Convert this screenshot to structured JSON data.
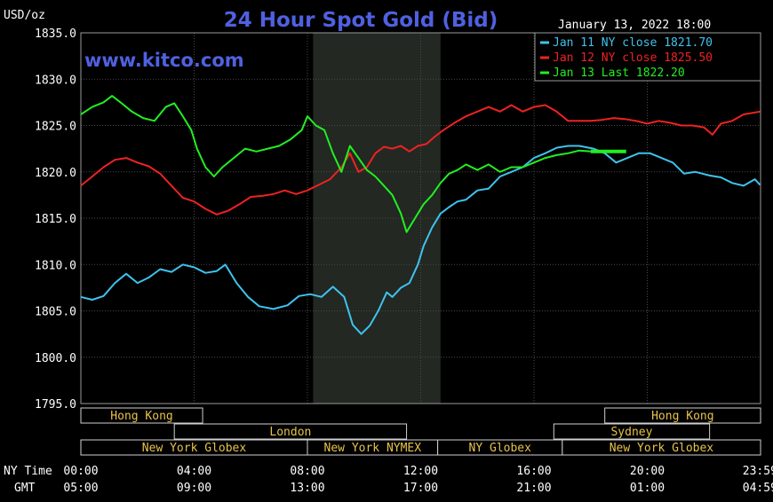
{
  "chart_data": {
    "type": "line",
    "title": "24 Hour Spot Gold (Bid)",
    "watermark": "www.kitco.com",
    "unit_label": "USD/oz",
    "date_label": "January 13, 2022 18:00",
    "ylim": [
      1795,
      1835
    ],
    "y_ticks": [
      "1835.0",
      "1830.0",
      "1825.0",
      "1820.0",
      "1815.0",
      "1810.0",
      "1805.0",
      "1800.0",
      "1795.0"
    ],
    "x_rows": {
      "ny_label": "NY Time",
      "gmt_label": "GMT",
      "ny": [
        "00:00",
        "04:00",
        "08:00",
        "12:00",
        "16:00",
        "20:00",
        "23:59"
      ],
      "gmt": [
        "05:00",
        "09:00",
        "13:00",
        "17:00",
        "21:00",
        "01:00",
        "04:59"
      ]
    },
    "x_hours": [
      0,
      4,
      8,
      12,
      16,
      20,
      23.98
    ],
    "nymex_shade_hours": [
      8.2,
      12.7
    ],
    "legend": [
      {
        "label": "Jan 11 NY close 1821.70",
        "color": "#3ec3ee"
      },
      {
        "label": "Jan 12 NY close 1825.50",
        "color": "#ee2222"
      },
      {
        "label": "Jan 13 Last 1822.20",
        "color": "#22ee22"
      }
    ],
    "sessions": [
      {
        "label": "Hong Kong",
        "start": 0,
        "end": 4.3,
        "row": 0
      },
      {
        "label": "Hong Kong",
        "start": 18.5,
        "end": 24,
        "row": 0
      },
      {
        "label": "London",
        "start": 3.3,
        "end": 11.5,
        "row": 1
      },
      {
        "label": "Sydney",
        "start": 16.7,
        "end": 22.2,
        "row": 1
      },
      {
        "label": "New York Globex",
        "start": 0,
        "end": 8.0,
        "row": 2
      },
      {
        "label": "New York NYMEX",
        "start": 8.0,
        "end": 12.6,
        "row": 2
      },
      {
        "label": "NY Globex",
        "start": 12.6,
        "end": 17.0,
        "row": 2
      },
      {
        "label": "New York Globex",
        "start": 17.0,
        "end": 24,
        "row": 2
      }
    ],
    "series": [
      {
        "name": "Jan 11",
        "color": "#3ec3ee",
        "points": [
          [
            0,
            1806.5
          ],
          [
            0.4,
            1806.2
          ],
          [
            0.8,
            1806.6
          ],
          [
            1.2,
            1808.0
          ],
          [
            1.6,
            1809.0
          ],
          [
            2.0,
            1808.0
          ],
          [
            2.4,
            1808.6
          ],
          [
            2.8,
            1809.5
          ],
          [
            3.2,
            1809.2
          ],
          [
            3.6,
            1810.0
          ],
          [
            4.0,
            1809.7
          ],
          [
            4.4,
            1809.1
          ],
          [
            4.8,
            1809.3
          ],
          [
            5.1,
            1810.0
          ],
          [
            5.5,
            1808.0
          ],
          [
            5.9,
            1806.5
          ],
          [
            6.3,
            1805.5
          ],
          [
            6.8,
            1805.2
          ],
          [
            7.3,
            1805.6
          ],
          [
            7.7,
            1806.6
          ],
          [
            8.1,
            1806.8
          ],
          [
            8.5,
            1806.5
          ],
          [
            8.9,
            1807.6
          ],
          [
            9.3,
            1806.5
          ],
          [
            9.6,
            1803.5
          ],
          [
            9.9,
            1802.5
          ],
          [
            10.2,
            1803.4
          ],
          [
            10.5,
            1805.0
          ],
          [
            10.8,
            1807.0
          ],
          [
            11.0,
            1806.5
          ],
          [
            11.3,
            1807.5
          ],
          [
            11.6,
            1808.0
          ],
          [
            11.9,
            1810.0
          ],
          [
            12.1,
            1812.0
          ],
          [
            12.4,
            1814.0
          ],
          [
            12.7,
            1815.5
          ],
          [
            13.0,
            1816.2
          ],
          [
            13.3,
            1816.8
          ],
          [
            13.6,
            1817.0
          ],
          [
            14.0,
            1818.0
          ],
          [
            14.4,
            1818.2
          ],
          [
            14.8,
            1819.5
          ],
          [
            15.2,
            1820.0
          ],
          [
            15.6,
            1820.5
          ],
          [
            16.0,
            1821.5
          ],
          [
            16.4,
            1822.0
          ],
          [
            16.8,
            1822.6
          ],
          [
            17.2,
            1822.8
          ],
          [
            17.6,
            1822.8
          ],
          [
            18.1,
            1822.5
          ],
          [
            18.5,
            1822.0
          ],
          [
            18.9,
            1821.0
          ],
          [
            19.3,
            1821.5
          ],
          [
            19.7,
            1822.0
          ],
          [
            20.1,
            1822.0
          ],
          [
            20.5,
            1821.5
          ],
          [
            20.9,
            1821.0
          ],
          [
            21.3,
            1819.8
          ],
          [
            21.7,
            1820.0
          ],
          [
            22.2,
            1819.6
          ],
          [
            22.6,
            1819.4
          ],
          [
            23.0,
            1818.8
          ],
          [
            23.4,
            1818.5
          ],
          [
            23.8,
            1819.2
          ],
          [
            23.98,
            1818.6
          ]
        ]
      },
      {
        "name": "Jan 12",
        "color": "#ee2222",
        "points": [
          [
            0,
            1818.5
          ],
          [
            0.4,
            1819.5
          ],
          [
            0.8,
            1820.5
          ],
          [
            1.2,
            1821.3
          ],
          [
            1.6,
            1821.5
          ],
          [
            2.0,
            1821.0
          ],
          [
            2.4,
            1820.6
          ],
          [
            2.8,
            1819.8
          ],
          [
            3.2,
            1818.5
          ],
          [
            3.6,
            1817.2
          ],
          [
            4.0,
            1816.8
          ],
          [
            4.4,
            1816.0
          ],
          [
            4.8,
            1815.4
          ],
          [
            5.2,
            1815.8
          ],
          [
            5.6,
            1816.5
          ],
          [
            6.0,
            1817.3
          ],
          [
            6.4,
            1817.4
          ],
          [
            6.8,
            1817.6
          ],
          [
            7.2,
            1818.0
          ],
          [
            7.6,
            1817.6
          ],
          [
            8.0,
            1818.0
          ],
          [
            8.4,
            1818.6
          ],
          [
            8.8,
            1819.2
          ],
          [
            9.2,
            1820.5
          ],
          [
            9.5,
            1822.0
          ],
          [
            9.8,
            1820.0
          ],
          [
            10.1,
            1820.5
          ],
          [
            10.4,
            1822.0
          ],
          [
            10.7,
            1822.7
          ],
          [
            11.0,
            1822.5
          ],
          [
            11.3,
            1822.8
          ],
          [
            11.6,
            1822.2
          ],
          [
            11.9,
            1822.8
          ],
          [
            12.2,
            1823.0
          ],
          [
            12.5,
            1823.8
          ],
          [
            12.8,
            1824.5
          ],
          [
            13.2,
            1825.3
          ],
          [
            13.6,
            1826.0
          ],
          [
            14.0,
            1826.5
          ],
          [
            14.4,
            1827.0
          ],
          [
            14.8,
            1826.5
          ],
          [
            15.2,
            1827.2
          ],
          [
            15.6,
            1826.5
          ],
          [
            16.0,
            1827.0
          ],
          [
            16.4,
            1827.2
          ],
          [
            16.8,
            1826.5
          ],
          [
            17.2,
            1825.5
          ],
          [
            17.6,
            1825.5
          ],
          [
            18.0,
            1825.5
          ],
          [
            18.4,
            1825.6
          ],
          [
            18.8,
            1825.8
          ],
          [
            19.2,
            1825.7
          ],
          [
            19.6,
            1825.5
          ],
          [
            20.0,
            1825.2
          ],
          [
            20.4,
            1825.5
          ],
          [
            20.8,
            1825.3
          ],
          [
            21.2,
            1825.0
          ],
          [
            21.6,
            1825.0
          ],
          [
            22.0,
            1824.8
          ],
          [
            22.3,
            1824.0
          ],
          [
            22.6,
            1825.2
          ],
          [
            23.0,
            1825.5
          ],
          [
            23.4,
            1826.2
          ],
          [
            23.98,
            1826.5
          ]
        ]
      },
      {
        "name": "Jan 13",
        "color": "#22ee22",
        "points": [
          [
            0,
            1826.2
          ],
          [
            0.4,
            1827.0
          ],
          [
            0.8,
            1827.5
          ],
          [
            1.1,
            1828.2
          ],
          [
            1.4,
            1827.5
          ],
          [
            1.8,
            1826.5
          ],
          [
            2.2,
            1825.8
          ],
          [
            2.6,
            1825.5
          ],
          [
            3.0,
            1827.0
          ],
          [
            3.3,
            1827.4
          ],
          [
            3.6,
            1826.0
          ],
          [
            3.9,
            1824.5
          ],
          [
            4.1,
            1822.5
          ],
          [
            4.4,
            1820.5
          ],
          [
            4.7,
            1819.5
          ],
          [
            5.0,
            1820.5
          ],
          [
            5.4,
            1821.5
          ],
          [
            5.8,
            1822.5
          ],
          [
            6.2,
            1822.2
          ],
          [
            6.6,
            1822.5
          ],
          [
            7.0,
            1822.8
          ],
          [
            7.4,
            1823.5
          ],
          [
            7.8,
            1824.5
          ],
          [
            8.0,
            1826.0
          ],
          [
            8.3,
            1825.0
          ],
          [
            8.6,
            1824.5
          ],
          [
            8.9,
            1822.0
          ],
          [
            9.2,
            1820.0
          ],
          [
            9.5,
            1822.8
          ],
          [
            9.8,
            1821.5
          ],
          [
            10.1,
            1820.2
          ],
          [
            10.4,
            1819.5
          ],
          [
            10.7,
            1818.5
          ],
          [
            11.0,
            1817.5
          ],
          [
            11.3,
            1815.5
          ],
          [
            11.5,
            1813.5
          ],
          [
            11.8,
            1815.0
          ],
          [
            12.1,
            1816.5
          ],
          [
            12.4,
            1817.5
          ],
          [
            12.7,
            1818.8
          ],
          [
            13.0,
            1819.8
          ],
          [
            13.3,
            1820.2
          ],
          [
            13.6,
            1820.8
          ],
          [
            14.0,
            1820.2
          ],
          [
            14.4,
            1820.8
          ],
          [
            14.8,
            1820.0
          ],
          [
            15.2,
            1820.5
          ],
          [
            15.6,
            1820.5
          ],
          [
            16.0,
            1821.0
          ],
          [
            16.4,
            1821.5
          ],
          [
            16.8,
            1821.8
          ],
          [
            17.2,
            1822.0
          ],
          [
            17.6,
            1822.3
          ],
          [
            18.0,
            1822.2
          ]
        ]
      }
    ]
  }
}
